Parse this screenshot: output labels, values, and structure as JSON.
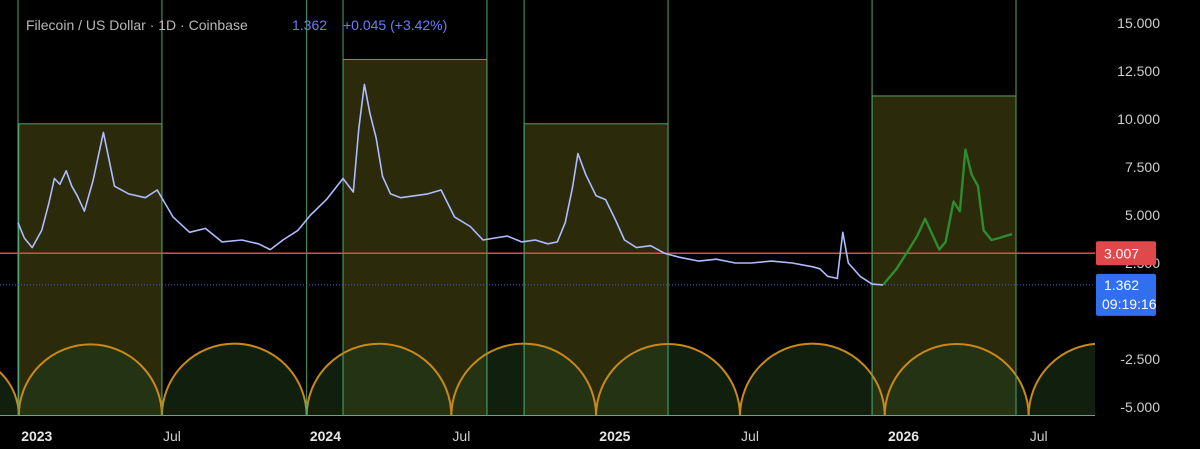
{
  "header": {
    "symbol": "Filecoin / US Dollar · 1D · Coinbase",
    "price": "1.362",
    "change": "+0.045 (+3.42%)"
  },
  "colors": {
    "background": "#000000",
    "price_line": "#aebcff",
    "projection_line": "#2e8b2e",
    "cycle_box_fill": "#3a3a10",
    "cycle_box_stroke": "#4ca56a",
    "arc_stroke": "#c8891a",
    "resistance_line": "#e0484a",
    "current_badge": "#2f6ff0",
    "resistance_badge": "#e0484a"
  },
  "chart_data": {
    "type": "line",
    "title": "Filecoin / US Dollar · 1D · Coinbase",
    "x_axis": {
      "ticks": [
        "2023",
        "Jul",
        "2024",
        "Jul",
        "2025",
        "Jul",
        "2026",
        "Jul"
      ],
      "bold_ticks": [
        "2023",
        "2024",
        "2025",
        "2026"
      ],
      "range": [
        "2023-01-01",
        "2026-08-10"
      ]
    },
    "y_axis": {
      "ticks": [
        "15.000",
        "12.500",
        "10.000",
        "7.500",
        "5.000",
        "2.500",
        "-2.500",
        "-5.000"
      ],
      "range": [
        -5.0,
        15.0
      ]
    },
    "series": [
      {
        "style": "price",
        "x": [
          "2022-12-31",
          "2023-01-08",
          "2023-01-18",
          "2023-01-30",
          "2023-02-08",
          "2023-02-15",
          "2023-02-22",
          "2023-03-02",
          "2023-03-09",
          "2023-03-16",
          "2023-03-25",
          "2023-04-05",
          "2023-04-18",
          "2023-05-02",
          "2023-05-20",
          "2023-06-10",
          "2023-06-25",
          "2023-07-15",
          "2023-08-05",
          "2023-08-25",
          "2023-09-15",
          "2023-10-10",
          "2023-10-31",
          "2023-11-15",
          "2023-12-01",
          "2023-12-20",
          "2024-01-05",
          "2024-01-25",
          "2024-02-15",
          "2024-02-28",
          "2024-03-06",
          "2024-03-13",
          "2024-03-20",
          "2024-03-28",
          "2024-04-05",
          "2024-04-15",
          "2024-04-28",
          "2024-05-15",
          "2024-06-01",
          "2024-06-18",
          "2024-07-05",
          "2024-07-25",
          "2024-08-10",
          "2024-08-25",
          "2024-09-10",
          "2024-09-28",
          "2024-10-15",
          "2024-10-31",
          "2024-11-12",
          "2024-11-22",
          "2024-12-01",
          "2024-12-08",
          "2024-12-18",
          "2024-12-31",
          "2025-01-12",
          "2025-01-25",
          "2025-02-05",
          "2025-02-20",
          "2025-03-10",
          "2025-03-28",
          "2025-04-15",
          "2025-05-10",
          "2025-06-01",
          "2025-06-25",
          "2025-07-15",
          "2025-08-10",
          "2025-09-05",
          "2025-10-01",
          "2025-10-10",
          "2025-10-20",
          "2025-11-01",
          "2025-11-08",
          "2025-11-15",
          "2025-11-30",
          "2025-12-15",
          "2025-12-29"
        ],
        "y": [
          4.6,
          3.8,
          3.3,
          4.2,
          5.6,
          6.9,
          6.6,
          7.3,
          6.5,
          6.0,
          5.2,
          6.8,
          9.3,
          6.5,
          6.1,
          5.9,
          6.3,
          4.9,
          4.1,
          4.3,
          3.6,
          3.7,
          3.5,
          3.2,
          3.7,
          4.2,
          5.0,
          5.8,
          6.9,
          6.2,
          9.5,
          11.8,
          10.3,
          9.0,
          7.0,
          6.1,
          5.9,
          6.0,
          6.1,
          6.3,
          4.9,
          4.4,
          3.7,
          3.8,
          3.9,
          3.6,
          3.7,
          3.5,
          3.6,
          4.6,
          6.4,
          8.2,
          7.1,
          6.0,
          5.8,
          4.7,
          3.7,
          3.3,
          3.4,
          3.0,
          2.8,
          2.6,
          2.7,
          2.5,
          2.5,
          2.6,
          2.5,
          2.3,
          2.2,
          1.8,
          1.7,
          4.1,
          2.5,
          1.8,
          1.4,
          1.36
        ]
      },
      {
        "style": "projection",
        "x": [
          "2025-12-29",
          "2026-01-15",
          "2026-02-01",
          "2026-02-10",
          "2026-02-20",
          "2026-03-01",
          "2026-03-10",
          "2026-03-18",
          "2026-03-28",
          "2026-04-05",
          "2026-04-12",
          "2026-04-20",
          "2026-04-28",
          "2026-05-05",
          "2026-05-15",
          "2026-05-25",
          "2026-06-01",
          "2026-06-10"
        ],
        "y": [
          1.36,
          2.2,
          3.3,
          3.9,
          4.8,
          4.0,
          3.2,
          3.6,
          5.7,
          5.2,
          8.4,
          7.1,
          6.5,
          4.2,
          3.7,
          3.8,
          3.9,
          4.0
        ]
      }
    ],
    "horizontal_lines": [
      {
        "value": 3.007,
        "label": "3.007",
        "style": "resistance"
      },
      {
        "value": 1.362,
        "label": "1.362",
        "sublabel": "09:19:16",
        "style": "current"
      }
    ],
    "cycle_boxes": [
      {
        "start": "2023-01-01",
        "end": "2023-07-01",
        "top": 9.75
      },
      {
        "start": "2024-02-15",
        "end": "2024-08-15",
        "top": 13.1
      },
      {
        "start": "2024-10-01",
        "end": "2025-04-01",
        "top": 9.75
      },
      {
        "start": "2025-12-15",
        "end": "2026-06-15",
        "top": 11.2
      }
    ],
    "vertical_lines": [
      "2022-12-31",
      "2023-07-01",
      "2023-12-31",
      "2024-02-15",
      "2024-08-15",
      "2024-10-01",
      "2025-04-01",
      "2025-12-15",
      "2026-06-15"
    ],
    "arcs": [
      {
        "start": "2022-08-01",
        "end": "2023-01-01"
      },
      {
        "start": "2023-01-01",
        "end": "2023-07-01"
      },
      {
        "start": "2023-07-01",
        "end": "2023-12-31"
      },
      {
        "start": "2023-12-31",
        "end": "2024-07-01"
      },
      {
        "start": "2024-07-01",
        "end": "2024-12-31"
      },
      {
        "start": "2024-12-31",
        "end": "2025-07-01"
      },
      {
        "start": "2025-07-01",
        "end": "2025-12-31"
      },
      {
        "start": "2025-12-31",
        "end": "2026-07-01"
      },
      {
        "start": "2026-07-01",
        "end": "2026-12-31"
      }
    ]
  }
}
